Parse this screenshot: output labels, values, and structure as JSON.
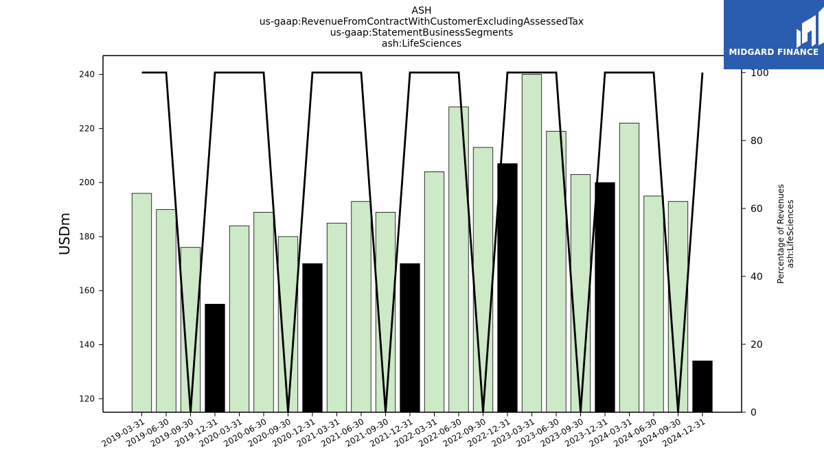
{
  "chart_data": {
    "type": "bar",
    "title_lines": [
      "ASH",
      "us-gaap:RevenueFromContractWithCustomerExcludingAssessedTax",
      "us-gaap:StatementBusinessSegments",
      "ash:LifeSciences"
    ],
    "ylabel": "USDm",
    "ylabel_right": [
      "Percentage of Revenues",
      "ash:LifeSciences"
    ],
    "categories": [
      "2019-03-31",
      "2019-06-30",
      "2019-09-30",
      "2019-12-31",
      "2020-03-31",
      "2020-06-30",
      "2020-09-30",
      "2020-12-31",
      "2021-03-31",
      "2021-06-30",
      "2021-09-30",
      "2021-12-31",
      "2022-03-31",
      "2022-06-30",
      "2022-09-30",
      "2022-12-31",
      "2023-03-31",
      "2023-06-30",
      "2023-09-30",
      "2023-12-31",
      "2024-03-31",
      "2024-06-30",
      "2024-09-30",
      "2024-12-31"
    ],
    "series": [
      {
        "type": "bar",
        "values": [
          196,
          190,
          176,
          155,
          184,
          189,
          180,
          170,
          185,
          193,
          189,
          170,
          204,
          228,
          213,
          207,
          240,
          219,
          203,
          200,
          222,
          195,
          193,
          134
        ],
        "colors": [
          "#cde9c7",
          "#cde9c7",
          "#cde9c7",
          "#000000",
          "#cde9c7",
          "#cde9c7",
          "#cde9c7",
          "#000000",
          "#cde9c7",
          "#cde9c7",
          "#cde9c7",
          "#000000",
          "#cde9c7",
          "#cde9c7",
          "#cde9c7",
          "#000000",
          "#cde9c7",
          "#cde9c7",
          "#cde9c7",
          "#000000",
          "#cde9c7",
          "#cde9c7",
          "#cde9c7",
          "#000000"
        ]
      },
      {
        "type": "line",
        "axis": "right",
        "values": [
          100,
          100,
          0,
          100,
          100,
          100,
          0,
          100,
          100,
          100,
          0,
          100,
          100,
          100,
          0,
          100,
          100,
          100,
          0,
          100,
          100,
          100,
          0,
          100
        ],
        "color": "#000000"
      }
    ],
    "ylim": [
      115,
      247
    ],
    "yticks": [
      120,
      140,
      160,
      180,
      200,
      220,
      240
    ],
    "ylim_right": [
      0,
      105
    ],
    "yticks_right": [
      0,
      20,
      40,
      60,
      80,
      100
    ]
  },
  "logo": {
    "text": "MIDGARD FINANCE",
    "color": "#2a5db0"
  }
}
